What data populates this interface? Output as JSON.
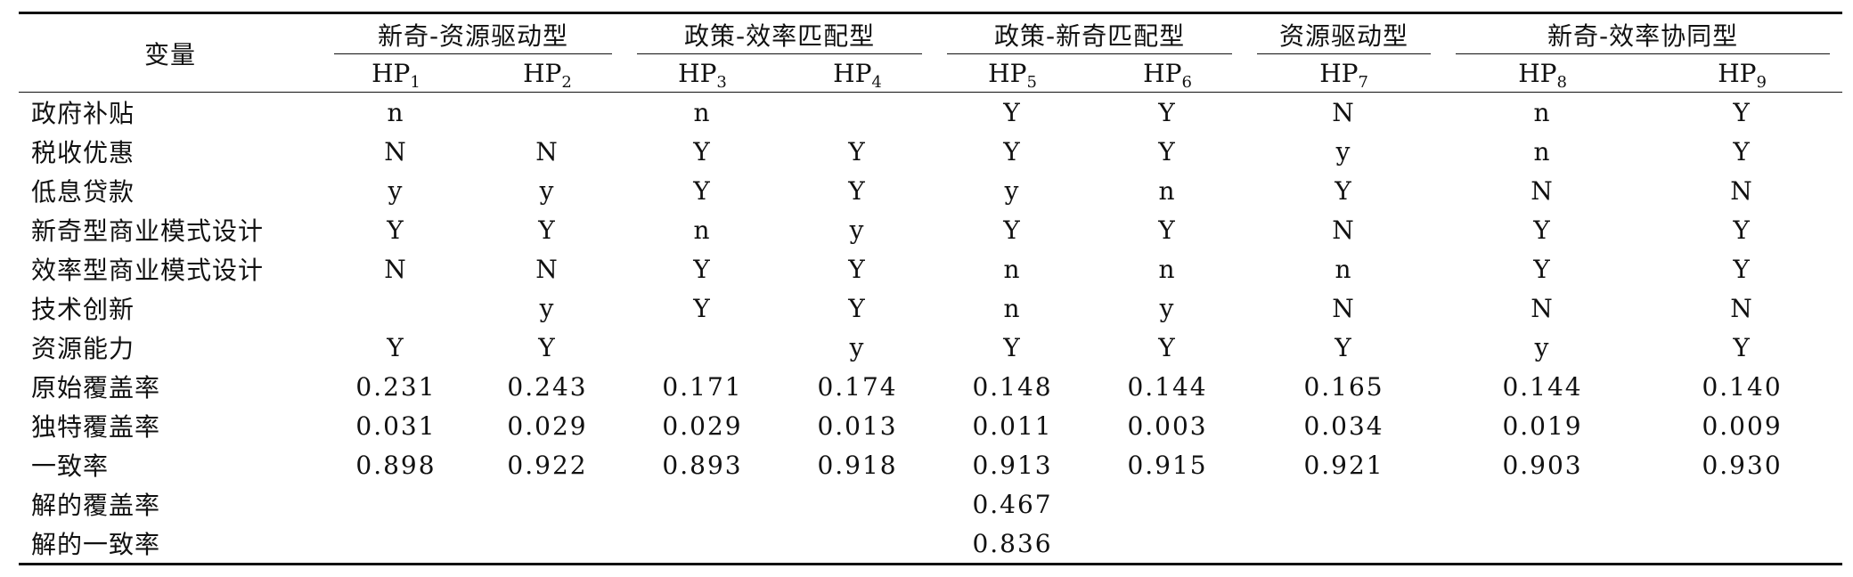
{
  "header": {
    "variable_label": "变量",
    "groups": [
      {
        "label": "新奇-资源驱动型",
        "span": 2
      },
      {
        "label": "政策-效率匹配型",
        "span": 2
      },
      {
        "label": "政策-新奇匹配型",
        "span": 2
      },
      {
        "label": "资源驱动型",
        "span": 1
      },
      {
        "label": "新奇-效率协同型",
        "span": 2
      }
    ],
    "configs": [
      {
        "base": "HP",
        "sub": "1"
      },
      {
        "base": "HP",
        "sub": "2"
      },
      {
        "base": "HP",
        "sub": "3"
      },
      {
        "base": "HP",
        "sub": "4"
      },
      {
        "base": "HP",
        "sub": "5"
      },
      {
        "base": "HP",
        "sub": "6"
      },
      {
        "base": "HP",
        "sub": "7"
      },
      {
        "base": "HP",
        "sub": "8"
      },
      {
        "base": "HP",
        "sub": "9"
      }
    ]
  },
  "rows": [
    {
      "label": "政府补贴",
      "cells": [
        "n",
        "",
        "n",
        "",
        "Y",
        "Y",
        "N",
        "n",
        "Y"
      ]
    },
    {
      "label": "税收优惠",
      "cells": [
        "N",
        "N",
        "Y",
        "Y",
        "Y",
        "Y",
        "y",
        "n",
        "Y"
      ]
    },
    {
      "label": "低息贷款",
      "cells": [
        "y",
        "y",
        "Y",
        "Y",
        "y",
        "n",
        "Y",
        "N",
        "N"
      ]
    },
    {
      "label": "新奇型商业模式设计",
      "cells": [
        "Y",
        "Y",
        "n",
        "y",
        "Y",
        "Y",
        "N",
        "Y",
        "Y"
      ]
    },
    {
      "label": "效率型商业模式设计",
      "cells": [
        "N",
        "N",
        "Y",
        "Y",
        "n",
        "n",
        "n",
        "Y",
        "Y"
      ]
    },
    {
      "label": "技术创新",
      "cells": [
        "",
        "y",
        "Y",
        "Y",
        "n",
        "y",
        "N",
        "N",
        "N"
      ]
    },
    {
      "label": "资源能力",
      "cells": [
        "Y",
        "Y",
        "",
        "y",
        "Y",
        "Y",
        "Y",
        "y",
        "Y"
      ]
    },
    {
      "label": "原始覆盖率",
      "cells": [
        "0.231",
        "0.243",
        "0.171",
        "0.174",
        "0.148",
        "0.144",
        "0.165",
        "0.144",
        "0.140"
      ]
    },
    {
      "label": "独特覆盖率",
      "cells": [
        "0.031",
        "0.029",
        "0.029",
        "0.013",
        "0.011",
        "0.003",
        "0.034",
        "0.019",
        "0.009"
      ]
    },
    {
      "label": "一致率",
      "cells": [
        "0.898",
        "0.922",
        "0.893",
        "0.918",
        "0.913",
        "0.915",
        "0.921",
        "0.903",
        "0.930"
      ]
    }
  ],
  "solution": {
    "coverage_label": "解的覆盖率",
    "coverage_value": "0.467",
    "consistency_label": "解的一致率",
    "consistency_value": "0.836"
  }
}
